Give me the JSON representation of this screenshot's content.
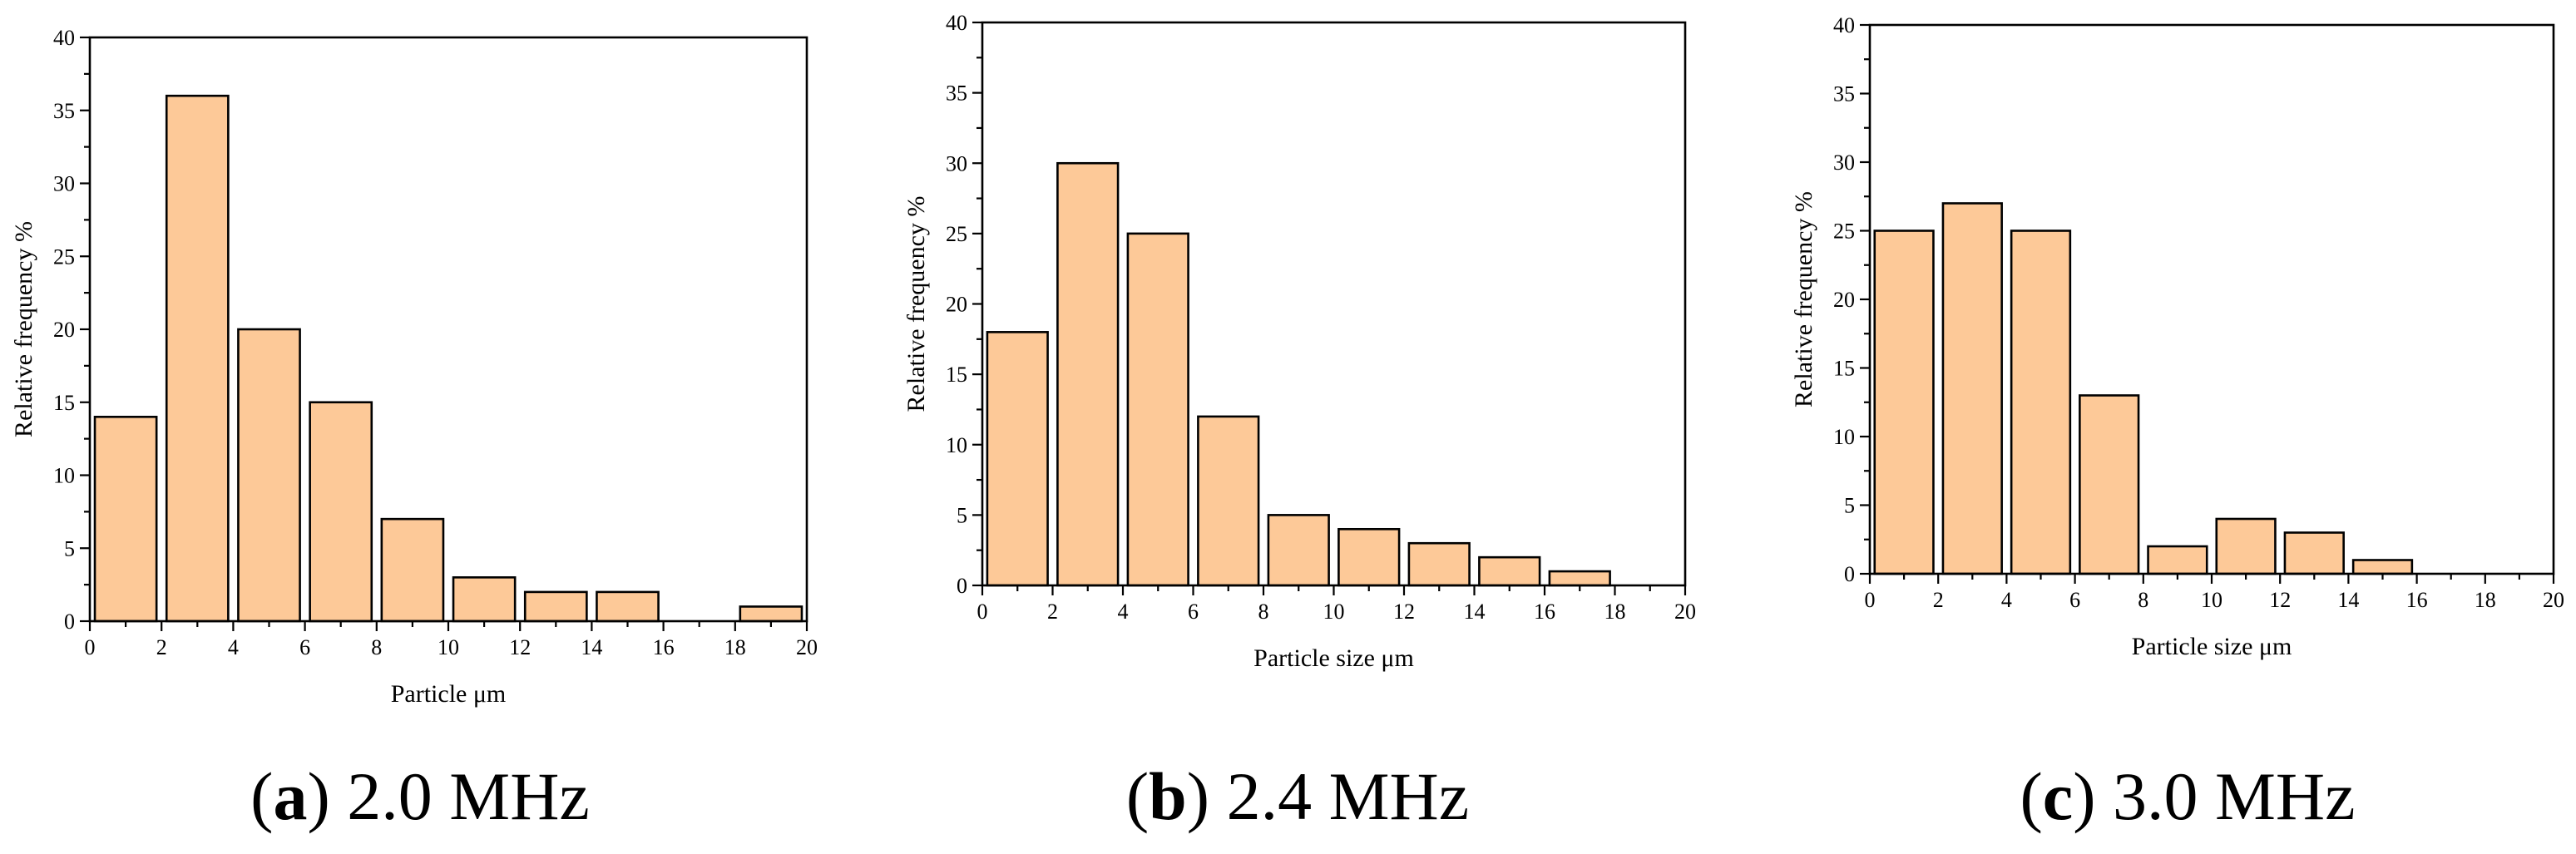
{
  "chart_data": [
    {
      "type": "bar",
      "panel": "a",
      "caption": {
        "letter": "a",
        "text": "2.0 MHz"
      },
      "xlabel": "Particle μm",
      "ylabel": "Relative frequency %",
      "xlim": [
        0,
        20
      ],
      "ylim": [
        0,
        40
      ],
      "bin_width": 2,
      "x_ticks": [
        0,
        2,
        4,
        6,
        8,
        10,
        12,
        14,
        16,
        18,
        20
      ],
      "y_ticks": [
        0,
        5,
        10,
        15,
        20,
        25,
        30,
        35,
        40
      ],
      "bins": [
        {
          "x0": 0,
          "value": 14
        },
        {
          "x0": 2,
          "value": 36
        },
        {
          "x0": 4,
          "value": 20
        },
        {
          "x0": 6,
          "value": 15
        },
        {
          "x0": 8,
          "value": 7
        },
        {
          "x0": 10,
          "value": 3
        },
        {
          "x0": 12,
          "value": 2
        },
        {
          "x0": 14,
          "value": 2
        },
        {
          "x0": 16,
          "value": 0
        },
        {
          "x0": 18,
          "value": 1
        }
      ]
    },
    {
      "type": "bar",
      "panel": "b",
      "caption": {
        "letter": "b",
        "text": "2.4 MHz"
      },
      "xlabel": "Particle size μm",
      "ylabel": "Relative frequency %",
      "xlim": [
        0,
        20
      ],
      "ylim": [
        0,
        40
      ],
      "bin_width": 2,
      "x_ticks": [
        0,
        2,
        4,
        6,
        8,
        10,
        12,
        14,
        16,
        18,
        20
      ],
      "y_ticks": [
        0,
        5,
        10,
        15,
        20,
        25,
        30,
        35,
        40
      ],
      "bins": [
        {
          "x0": 0,
          "value": 18
        },
        {
          "x0": 2,
          "value": 30
        },
        {
          "x0": 4,
          "value": 25
        },
        {
          "x0": 6,
          "value": 12
        },
        {
          "x0": 8,
          "value": 5
        },
        {
          "x0": 10,
          "value": 4
        },
        {
          "x0": 12,
          "value": 3
        },
        {
          "x0": 14,
          "value": 2
        },
        {
          "x0": 16,
          "value": 1
        },
        {
          "x0": 18,
          "value": 0
        }
      ]
    },
    {
      "type": "bar",
      "panel": "c",
      "caption": {
        "letter": "c",
        "text": "3.0 MHz"
      },
      "xlabel": "Particle size μm",
      "ylabel": "Relative frequency %",
      "xlim": [
        0,
        20
      ],
      "ylim": [
        0,
        40
      ],
      "bin_width": 2,
      "x_ticks": [
        0,
        2,
        4,
        6,
        8,
        10,
        12,
        14,
        16,
        18,
        20
      ],
      "y_ticks": [
        0,
        5,
        10,
        15,
        20,
        25,
        30,
        35,
        40
      ],
      "bins": [
        {
          "x0": 0,
          "value": 25
        },
        {
          "x0": 2,
          "value": 27
        },
        {
          "x0": 4,
          "value": 25
        },
        {
          "x0": 6,
          "value": 13
        },
        {
          "x0": 8,
          "value": 2
        },
        {
          "x0": 10,
          "value": 4
        },
        {
          "x0": 12,
          "value": 3
        },
        {
          "x0": 14,
          "value": 1
        },
        {
          "x0": 16,
          "value": 0
        },
        {
          "x0": 18,
          "value": 0
        }
      ]
    }
  ]
}
